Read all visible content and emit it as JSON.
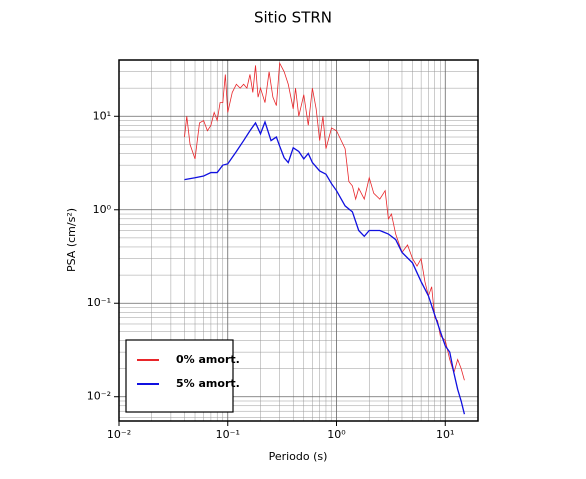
{
  "chart_data": {
    "type": "line",
    "title": "Sitio STRN",
    "x_label": "Periodo (s)",
    "y_label": "PSA (cm/s²)",
    "log_x": true,
    "log_y": true,
    "grid": true,
    "legend": "lower left",
    "xlim": [
      0.01,
      20
    ],
    "ylim": [
      0.0055,
      40
    ],
    "xticks": [
      {
        "value": 0.01,
        "label": "10⁻²"
      },
      {
        "value": 0.1,
        "label": "10⁻¹"
      },
      {
        "value": 1,
        "label": "10⁰"
      },
      {
        "value": 10,
        "label": "10¹"
      }
    ],
    "yticks": [
      {
        "value": 0.01,
        "label": "10⁻²"
      },
      {
        "value": 0.1,
        "label": "10⁻¹"
      },
      {
        "value": 1,
        "label": "10⁰"
      },
      {
        "value": 10,
        "label": "10¹"
      }
    ],
    "series": [
      {
        "name": "0% amort.",
        "color": "#e8262a",
        "width": 0.8,
        "x": [
          0.04,
          0.042,
          0.045,
          0.05,
          0.055,
          0.06,
          0.065,
          0.07,
          0.075,
          0.08,
          0.085,
          0.09,
          0.095,
          0.1,
          0.11,
          0.12,
          0.13,
          0.14,
          0.15,
          0.16,
          0.17,
          0.18,
          0.19,
          0.2,
          0.22,
          0.24,
          0.26,
          0.28,
          0.3,
          0.33,
          0.36,
          0.4,
          0.42,
          0.45,
          0.5,
          0.55,
          0.6,
          0.65,
          0.7,
          0.75,
          0.8,
          0.9,
          1.0,
          1.2,
          1.3,
          1.4,
          1.5,
          1.6,
          1.8,
          2.0,
          2.2,
          2.5,
          2.8,
          3.0,
          3.2,
          3.5,
          4.0,
          4.5,
          5,
          5.5,
          6,
          6.5,
          7,
          7.5,
          8,
          8.5,
          9,
          10,
          11,
          12,
          13,
          14,
          15
        ],
        "values": [
          6,
          10,
          5,
          3.5,
          8.5,
          9,
          7,
          8,
          11,
          9,
          14,
          14,
          28,
          11,
          18,
          22,
          20,
          22,
          20,
          28,
          18,
          35,
          16,
          20,
          14,
          30,
          16,
          13,
          37,
          30,
          22,
          12,
          20,
          10,
          17,
          8,
          20,
          12,
          5.5,
          10,
          4.5,
          7.5,
          7,
          4.5,
          2,
          1.8,
          1.3,
          1.7,
          1.3,
          2.2,
          1.5,
          1.3,
          1.6,
          0.8,
          0.9,
          0.55,
          0.35,
          0.42,
          0.3,
          0.25,
          0.3,
          0.17,
          0.12,
          0.15,
          0.07,
          0.065,
          0.045,
          0.04,
          0.025,
          0.018,
          0.025,
          0.02,
          0.015
        ]
      },
      {
        "name": "5% amort.",
        "color": "#1010e0",
        "width": 1.3,
        "x": [
          0.04,
          0.05,
          0.06,
          0.07,
          0.08,
          0.09,
          0.1,
          0.12,
          0.14,
          0.16,
          0.18,
          0.2,
          0.22,
          0.25,
          0.28,
          0.3,
          0.33,
          0.36,
          0.4,
          0.45,
          0.5,
          0.55,
          0.6,
          0.7,
          0.8,
          0.9,
          1.0,
          1.2,
          1.4,
          1.6,
          1.8,
          2.0,
          2.5,
          3.0,
          3.5,
          4,
          5,
          6,
          7,
          8,
          9,
          10,
          11,
          12,
          13,
          14,
          15
        ],
        "values": [
          2.1,
          2.2,
          2.3,
          2.5,
          2.5,
          3.0,
          3.1,
          4.2,
          5.5,
          7,
          8.5,
          6.5,
          8.7,
          5.5,
          6,
          4.8,
          3.6,
          3.2,
          4.6,
          4.2,
          3.5,
          4.0,
          3.2,
          2.6,
          2.4,
          1.9,
          1.6,
          1.1,
          0.95,
          0.6,
          0.52,
          0.6,
          0.6,
          0.55,
          0.48,
          0.35,
          0.27,
          0.17,
          0.12,
          0.075,
          0.05,
          0.035,
          0.03,
          0.018,
          0.012,
          0.009,
          0.0065
        ]
      }
    ]
  }
}
